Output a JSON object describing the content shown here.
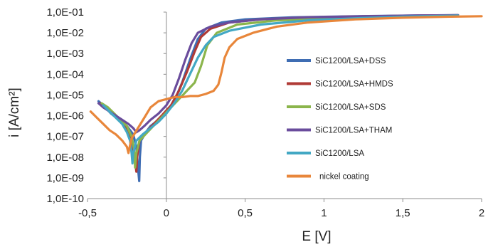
{
  "chart_data": {
    "type": "line",
    "title": "",
    "xlabel": "E [V]",
    "ylabel": "i [A/cm²]",
    "xlim": [
      -0.5,
      2.0
    ],
    "ylim_exponent": [
      -10,
      -1
    ],
    "y_scale": "log",
    "grid": false,
    "legend_position": "right",
    "x_ticks": [
      "-0,5",
      "0",
      "0,5",
      "1",
      "1,5",
      "2"
    ],
    "x_tick_values": [
      -0.5,
      0,
      0.5,
      1,
      1.5,
      2
    ],
    "y_ticks": [
      "1,0E-10",
      "1,0E-09",
      "1,0E-08",
      "1,0E-07",
      "1,0E-06",
      "1,0E-05",
      "1,0E-04",
      "1,0E-03",
      "1,0E-02",
      "1,0E-01"
    ],
    "y_tick_exponents": [
      -10,
      -9,
      -8,
      -7,
      -6,
      -5,
      -4,
      -3,
      -2,
      -1
    ],
    "series": [
      {
        "name": "SiC1200/LSA+DSS",
        "color": "#3f6db3",
        "points": [
          [
            -0.43,
            -5.3
          ],
          [
            -0.4,
            -5.5
          ],
          [
            -0.35,
            -5.9
          ],
          [
            -0.3,
            -6.2
          ],
          [
            -0.25,
            -6.5
          ],
          [
            -0.21,
            -6.9
          ],
          [
            -0.19,
            -7.5
          ],
          [
            -0.18,
            -8.5
          ],
          [
            -0.172,
            -9.15
          ],
          [
            -0.168,
            -8.0
          ],
          [
            -0.16,
            -7.2
          ],
          [
            -0.13,
            -6.8
          ],
          [
            -0.1,
            -6.5
          ],
          [
            -0.05,
            -6.2
          ],
          [
            0.0,
            -5.8
          ],
          [
            0.05,
            -5.3
          ],
          [
            0.1,
            -4.4
          ],
          [
            0.15,
            -3.3
          ],
          [
            0.2,
            -2.3
          ],
          [
            0.25,
            -1.8
          ],
          [
            0.35,
            -1.5
          ],
          [
            0.5,
            -1.35
          ],
          [
            0.8,
            -1.25
          ],
          [
            1.2,
            -1.2
          ],
          [
            1.6,
            -1.16
          ],
          [
            1.85,
            -1.15
          ]
        ]
      },
      {
        "name": "SiC1200/LSA+HMDS",
        "color": "#b03a36",
        "points": [
          [
            -0.42,
            -5.4
          ],
          [
            -0.38,
            -5.6
          ],
          [
            -0.34,
            -5.9
          ],
          [
            -0.3,
            -6.2
          ],
          [
            -0.26,
            -6.5
          ],
          [
            -0.23,
            -7.0
          ],
          [
            -0.21,
            -7.6
          ],
          [
            -0.195,
            -8.4
          ],
          [
            -0.19,
            -8.7
          ],
          [
            -0.185,
            -8.0
          ],
          [
            -0.17,
            -7.2
          ],
          [
            -0.13,
            -6.8
          ],
          [
            -0.08,
            -6.4
          ],
          [
            -0.03,
            -6.0
          ],
          [
            0.03,
            -5.5
          ],
          [
            0.08,
            -4.8
          ],
          [
            0.13,
            -3.9
          ],
          [
            0.18,
            -2.9
          ],
          [
            0.22,
            -2.2
          ],
          [
            0.28,
            -1.8
          ],
          [
            0.4,
            -1.5
          ],
          [
            0.6,
            -1.35
          ],
          [
            0.9,
            -1.25
          ],
          [
            1.3,
            -1.2
          ],
          [
            1.7,
            -1.16
          ],
          [
            1.85,
            -1.15
          ]
        ]
      },
      {
        "name": "SiC1200/LSA+SDS",
        "color": "#8bb54c",
        "points": [
          [
            -0.41,
            -5.4
          ],
          [
            -0.37,
            -5.6
          ],
          [
            -0.33,
            -5.9
          ],
          [
            -0.29,
            -6.2
          ],
          [
            -0.25,
            -6.5
          ],
          [
            -0.22,
            -7.0
          ],
          [
            -0.205,
            -7.6
          ],
          [
            -0.2,
            -8.2
          ],
          [
            -0.198,
            -8.5
          ],
          [
            -0.19,
            -7.8
          ],
          [
            -0.17,
            -7.2
          ],
          [
            -0.12,
            -6.8
          ],
          [
            -0.07,
            -6.4
          ],
          [
            -0.02,
            -6.0
          ],
          [
            0.03,
            -5.6
          ],
          [
            0.08,
            -5.2
          ],
          [
            0.13,
            -4.8
          ],
          [
            0.18,
            -4.4
          ],
          [
            0.22,
            -3.6
          ],
          [
            0.26,
            -2.6
          ],
          [
            0.32,
            -2.0
          ],
          [
            0.45,
            -1.6
          ],
          [
            0.7,
            -1.4
          ],
          [
            1.0,
            -1.3
          ],
          [
            1.4,
            -1.22
          ],
          [
            1.85,
            -1.17
          ]
        ]
      },
      {
        "name": "SiC1200/LSA+THAM",
        "color": "#6a4c9c",
        "points": [
          [
            -0.43,
            -5.4
          ],
          [
            -0.4,
            -5.6
          ],
          [
            -0.36,
            -5.8
          ],
          [
            -0.32,
            -6.0
          ],
          [
            -0.28,
            -6.2
          ],
          [
            -0.24,
            -6.4
          ],
          [
            -0.21,
            -6.6
          ],
          [
            -0.19,
            -6.8
          ],
          [
            -0.17,
            -6.7
          ],
          [
            -0.14,
            -6.5
          ],
          [
            -0.1,
            -6.2
          ],
          [
            -0.05,
            -5.9
          ],
          [
            0.0,
            -5.5
          ],
          [
            0.04,
            -5.0
          ],
          [
            0.08,
            -4.2
          ],
          [
            0.12,
            -3.3
          ],
          [
            0.16,
            -2.5
          ],
          [
            0.2,
            -2.0
          ],
          [
            0.28,
            -1.7
          ],
          [
            0.4,
            -1.5
          ],
          [
            0.6,
            -1.35
          ],
          [
            0.9,
            -1.25
          ],
          [
            1.3,
            -1.2
          ],
          [
            1.6,
            -1.16
          ],
          [
            1.85,
            -1.15
          ]
        ]
      },
      {
        "name": "SiC1200/LSA",
        "color": "#43a8c4",
        "points": [
          [
            -0.4,
            -5.5
          ],
          [
            -0.36,
            -5.8
          ],
          [
            -0.32,
            -6.1
          ],
          [
            -0.28,
            -6.4
          ],
          [
            -0.25,
            -6.8
          ],
          [
            -0.23,
            -7.2
          ],
          [
            -0.22,
            -7.8
          ],
          [
            -0.215,
            -8.3
          ],
          [
            -0.21,
            -7.8
          ],
          [
            -0.19,
            -7.2
          ],
          [
            -0.15,
            -6.9
          ],
          [
            -0.1,
            -6.6
          ],
          [
            -0.05,
            -6.3
          ],
          [
            0.0,
            -5.9
          ],
          [
            0.05,
            -5.4
          ],
          [
            0.1,
            -4.8
          ],
          [
            0.15,
            -4.0
          ],
          [
            0.2,
            -3.2
          ],
          [
            0.25,
            -2.6
          ],
          [
            0.3,
            -2.2
          ],
          [
            0.4,
            -1.9
          ],
          [
            0.6,
            -1.6
          ],
          [
            0.9,
            -1.4
          ],
          [
            1.2,
            -1.3
          ],
          [
            1.5,
            -1.22
          ],
          [
            1.85,
            -1.17
          ]
        ]
      },
      {
        "name": "nickel coating",
        "color": "#e8863a",
        "points": [
          [
            -0.48,
            -5.8
          ],
          [
            -0.44,
            -6.1
          ],
          [
            -0.4,
            -6.4
          ],
          [
            -0.36,
            -6.7
          ],
          [
            -0.32,
            -6.9
          ],
          [
            -0.28,
            -7.2
          ],
          [
            -0.25,
            -7.5
          ],
          [
            -0.24,
            -7.8
          ],
          [
            -0.235,
            -7.6
          ],
          [
            -0.22,
            -7.1
          ],
          [
            -0.18,
            -6.6
          ],
          [
            -0.14,
            -6.1
          ],
          [
            -0.1,
            -5.6
          ],
          [
            -0.05,
            -5.3
          ],
          [
            0.0,
            -5.2
          ],
          [
            0.05,
            -5.1
          ],
          [
            0.1,
            -5.1
          ],
          [
            0.15,
            -5.05
          ],
          [
            0.2,
            -5.05
          ],
          [
            0.25,
            -4.95
          ],
          [
            0.3,
            -4.8
          ],
          [
            0.33,
            -4.5
          ],
          [
            0.35,
            -3.9
          ],
          [
            0.37,
            -3.2
          ],
          [
            0.4,
            -2.7
          ],
          [
            0.45,
            -2.3
          ],
          [
            0.55,
            -2.0
          ],
          [
            0.7,
            -1.7
          ],
          [
            0.9,
            -1.5
          ],
          [
            1.2,
            -1.35
          ],
          [
            1.5,
            -1.27
          ],
          [
            1.8,
            -1.22
          ],
          [
            2.0,
            -1.2
          ]
        ]
      }
    ]
  }
}
